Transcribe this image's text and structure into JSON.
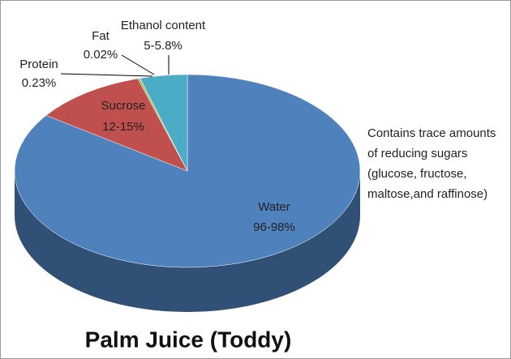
{
  "chart_data": {
    "type": "pie",
    "title": "Palm Juice (Toddy)",
    "categories": [
      "Water",
      "Sucrose",
      "Protein",
      "Fat",
      "Ethanol content"
    ],
    "values": [
      96,
      12,
      0.23,
      0.02,
      5
    ],
    "value_labels": [
      "96-98%",
      "12-15%",
      "0.23%",
      "0.02%",
      "5-5.8%"
    ],
    "colors": [
      "#4f81bd",
      "#c0504d",
      "#9bbb59",
      "#8064a2",
      "#4bacc6"
    ],
    "annotation": [
      "Contains trace amounts",
      "of reducing sugars",
      "(glucose, fructose,",
      "maltose,and raffinose)"
    ]
  }
}
